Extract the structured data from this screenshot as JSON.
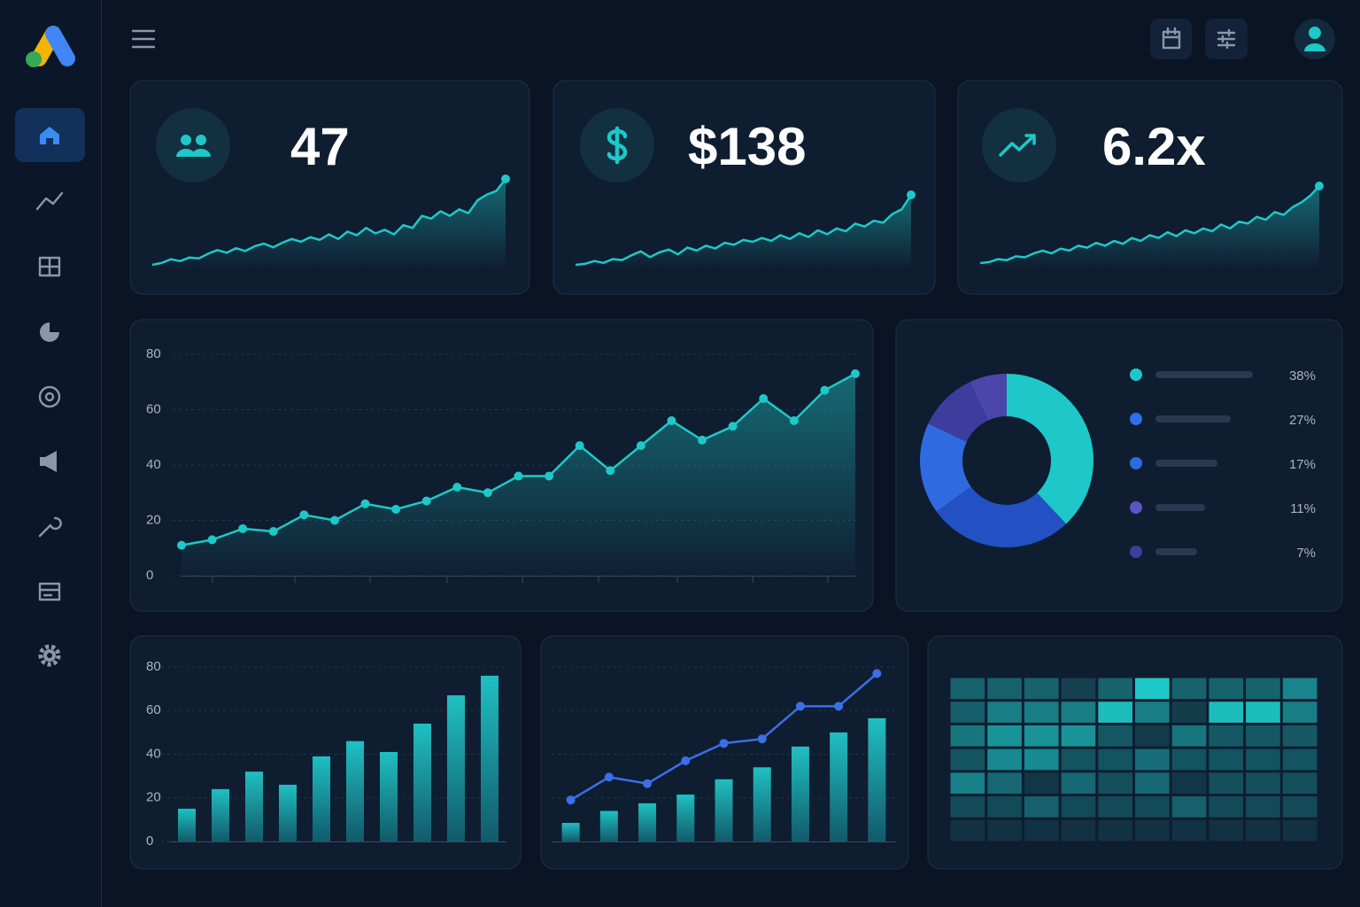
{
  "kpis": [
    {
      "value": "47"
    },
    {
      "value": "$138"
    },
    {
      "value": "6.2x"
    }
  ],
  "chart_data": [
    {
      "type": "line",
      "area": true,
      "color": "#1ec8c8",
      "values": [
        2,
        4,
        8,
        6,
        10,
        9,
        14,
        18,
        15,
        20,
        17,
        22,
        25,
        21,
        26,
        30,
        27,
        32,
        29,
        35,
        30,
        38,
        34,
        42,
        36,
        40,
        35,
        45,
        42,
        55,
        52,
        60,
        55,
        62,
        58,
        72,
        78,
        82,
        95
      ]
    },
    {
      "type": "line",
      "area": true,
      "color": "#1ec8c8",
      "values": [
        2,
        3,
        6,
        4,
        8,
        7,
        12,
        16,
        10,
        15,
        18,
        13,
        20,
        17,
        22,
        19,
        25,
        23,
        28,
        26,
        30,
        27,
        33,
        29,
        35,
        31,
        38,
        34,
        40,
        37,
        45,
        42,
        48,
        46,
        55,
        60,
        75
      ]
    },
    {
      "type": "line",
      "area": true,
      "color": "#1ec8c8",
      "values": [
        2,
        3,
        6,
        5,
        9,
        8,
        12,
        15,
        12,
        17,
        15,
        20,
        18,
        23,
        20,
        25,
        22,
        28,
        25,
        31,
        28,
        34,
        30,
        36,
        33,
        38,
        35,
        42,
        38,
        45,
        43,
        50,
        47,
        55,
        52,
        60,
        65,
        72,
        82
      ]
    },
    {
      "type": "line",
      "area": true,
      "markers": true,
      "color": "#1ec8c8",
      "grid": true,
      "values": [
        11,
        13,
        17,
        16,
        22,
        20,
        26,
        24,
        27,
        32,
        30,
        36,
        36,
        47,
        38,
        47,
        56,
        49,
        54,
        64,
        56,
        67,
        73
      ],
      "ylim": [
        0,
        80
      ],
      "yticks": [
        0,
        20,
        40,
        60,
        80
      ]
    },
    {
      "type": "pie",
      "donut": true,
      "values": [
        38,
        27,
        17,
        11,
        7
      ],
      "value_labels": [
        "38%",
        "27%",
        "17%",
        "11%",
        "7%"
      ],
      "colors": [
        "#1ec8c8",
        "#2350c2",
        "#2f6ae0",
        "#3c3d9c",
        "#4a46aa"
      ],
      "legend_colors": [
        "#1ec8c8",
        "#2d6fe8",
        "#2f6ae0",
        "#5b55c8",
        "#3e3e9e"
      ]
    },
    {
      "type": "bar",
      "color": "#1fb5b8",
      "grid": true,
      "values": [
        15,
        24,
        32,
        26,
        39,
        46,
        41,
        54,
        67,
        76
      ],
      "ylim": [
        0,
        80
      ],
      "yticks": [
        0,
        20,
        40,
        60,
        80
      ]
    },
    {
      "type": "combo",
      "ylim": [
        0,
        80
      ],
      "series": [
        {
          "kind": "bar",
          "color": "#1fb5b8",
          "values": [
            8.5,
            14,
            17.5,
            21.5,
            28.5,
            34,
            43.5,
            50,
            56.5
          ]
        },
        {
          "kind": "line",
          "color": "#3b6fe8",
          "values": [
            19,
            29.5,
            26.5,
            37,
            45,
            47,
            62,
            62,
            77
          ]
        }
      ]
    },
    {
      "type": "heatmap",
      "color": "#1ec8c8",
      "values": [
        [
          1,
          1,
          1,
          0,
          1,
          4,
          1,
          1,
          1,
          2
        ],
        [
          1,
          2,
          2,
          2,
          4,
          2,
          0,
          4,
          4,
          2
        ],
        [
          2,
          3,
          3,
          3,
          1,
          0,
          2,
          1,
          1,
          1
        ],
        [
          1,
          3,
          3,
          1,
          1,
          2,
          1,
          1,
          1,
          1
        ],
        [
          3,
          2,
          0,
          2,
          1,
          2,
          0,
          1,
          1,
          1
        ],
        [
          1,
          1,
          2,
          1,
          1,
          1,
          2,
          1,
          1,
          1
        ],
        [
          0,
          0,
          0,
          0,
          0,
          0,
          0,
          0,
          0,
          0
        ]
      ]
    }
  ]
}
